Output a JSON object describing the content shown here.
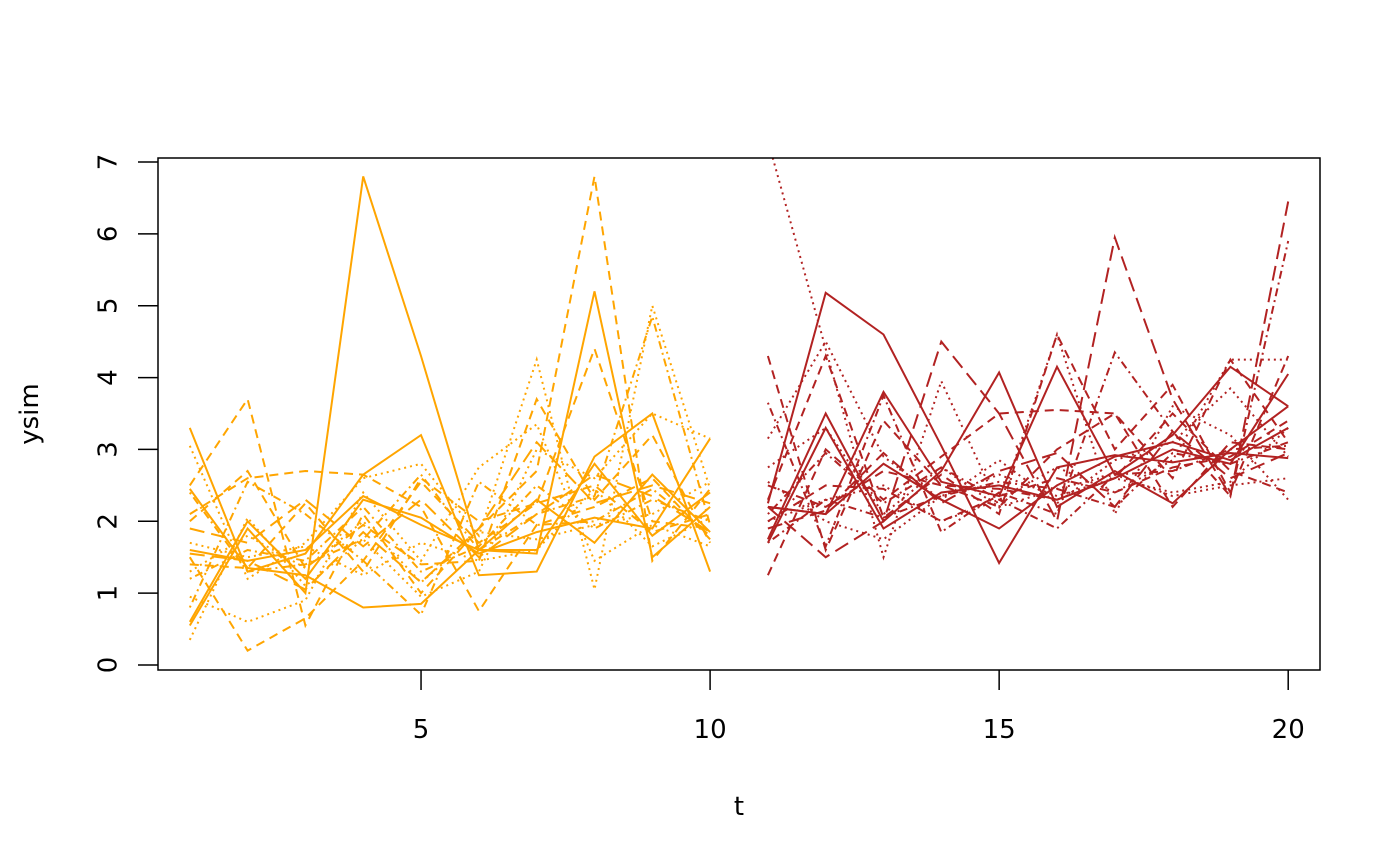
{
  "chart_data": {
    "type": "line",
    "xlabel": "t",
    "ylabel": "ysim",
    "xlim": [
      0.45,
      20.55
    ],
    "ylim": [
      0,
      7
    ],
    "x_ticks": [
      5,
      10,
      15,
      20
    ],
    "y_ticks": [
      0,
      1,
      2,
      3,
      4,
      5,
      6,
      7
    ],
    "grid": false,
    "legend": "none",
    "colors": {
      "group_a": "#ffa500",
      "group_b": "#b22222"
    },
    "group_a_x": [
      1,
      2,
      3,
      4,
      5,
      6,
      7,
      8,
      9,
      10
    ],
    "group_b_x": [
      11,
      12,
      13,
      14,
      15,
      16,
      17,
      18,
      19,
      20
    ],
    "series": [
      {
        "group": "a",
        "dash": "solid",
        "values": [
          0.55,
          1.9,
          1.0,
          6.8,
          4.3,
          1.6,
          1.55,
          5.2,
          1.5,
          2.2
        ]
      },
      {
        "group": "a",
        "dash": "solid",
        "values": [
          3.3,
          1.3,
          1.55,
          2.65,
          3.2,
          1.25,
          1.3,
          2.9,
          3.5,
          1.3
        ]
      },
      {
        "group": "a",
        "dash": "solid",
        "values": [
          2.45,
          1.35,
          1.25,
          0.8,
          0.85,
          1.6,
          2.3,
          1.7,
          2.65,
          1.85
        ]
      },
      {
        "group": "a",
        "dash": "solid",
        "values": [
          1.6,
          1.45,
          1.6,
          2.35,
          1.95,
          1.6,
          1.6,
          2.8,
          1.8,
          2.4
        ]
      },
      {
        "group": "a",
        "dash": "solid",
        "values": [
          0.6,
          2.0,
          1.2,
          2.3,
          2.05,
          1.55,
          1.85,
          2.05,
          1.9,
          3.15
        ]
      },
      {
        "group": "a",
        "dash": "dashed",
        "values": [
          2.5,
          3.7,
          0.55,
          2.1,
          1.0,
          1.9,
          2.7,
          6.8,
          1.45,
          2.45
        ]
      },
      {
        "group": "a",
        "dash": "dashed",
        "values": [
          1.5,
          0.2,
          0.65,
          1.45,
          2.55,
          1.7,
          2.25,
          4.4,
          2.0,
          1.9
        ]
      },
      {
        "group": "a",
        "dash": "dashed",
        "values": [
          2.1,
          2.6,
          2.7,
          2.65,
          2.2,
          0.75,
          1.95,
          2.2,
          2.6,
          1.75
        ]
      },
      {
        "group": "a",
        "dash": "dashed",
        "values": [
          1.4,
          1.35,
          2.25,
          1.3,
          2.6,
          2.0,
          2.25,
          2.5,
          1.85,
          2.1
        ]
      },
      {
        "group": "a",
        "dash": "dashed",
        "values": [
          2.0,
          2.7,
          1.35,
          1.95,
          1.4,
          1.45,
          3.7,
          2.3,
          3.2,
          1.7
        ]
      },
      {
        "group": "a",
        "dash": "dotted",
        "values": [
          3.05,
          1.2,
          1.7,
          2.6,
          2.8,
          1.8,
          4.25,
          1.05,
          5.0,
          2.45
        ]
      },
      {
        "group": "a",
        "dash": "dotted",
        "values": [
          0.35,
          2.05,
          1.1,
          1.75,
          0.95,
          1.3,
          3.0,
          2.6,
          3.5,
          3.15
        ]
      },
      {
        "group": "a",
        "dash": "dotted",
        "values": [
          0.95,
          0.6,
          0.9,
          2.4,
          1.45,
          2.75,
          3.35,
          1.45,
          1.95,
          1.65
        ]
      },
      {
        "group": "a",
        "dash": "dotted",
        "values": [
          1.7,
          1.5,
          1.65,
          1.25,
          1.7,
          1.45,
          1.6,
          2.45,
          1.65,
          2.05
        ]
      },
      {
        "group": "a",
        "dash": "dotted",
        "values": [
          1.3,
          1.8,
          1.35,
          2.0,
          1.15,
          1.85,
          1.75,
          1.95,
          2.1,
          2.55
        ]
      },
      {
        "group": "a",
        "dash": "dotdash",
        "values": [
          2.4,
          1.3,
          1.4,
          1.75,
          2.65,
          1.6,
          2.1,
          2.35,
          4.85,
          1.95
        ]
      },
      {
        "group": "a",
        "dash": "dotdash",
        "values": [
          0.8,
          2.55,
          2.1,
          1.45,
          0.7,
          2.55,
          1.95,
          2.0,
          2.45,
          1.8
        ]
      },
      {
        "group": "a",
        "dash": "dotdash",
        "values": [
          1.2,
          1.6,
          1.45,
          2.2,
          1.3,
          1.65,
          2.5,
          1.9,
          2.3,
          2.0
        ]
      },
      {
        "group": "a",
        "dash": "longdash",
        "values": [
          1.55,
          1.45,
          1.05,
          1.85,
          1.15,
          1.9,
          3.1,
          2.25,
          2.5,
          2.25
        ]
      },
      {
        "group": "a",
        "dash": "longdash",
        "values": [
          1.9,
          1.7,
          2.3,
          1.65,
          2.3,
          1.5,
          2.1,
          2.65,
          2.35,
          1.85
        ]
      },
      {
        "group": "b",
        "dash": "solid",
        "values": [
          2.25,
          5.18,
          4.6,
          3.05,
          1.42,
          2.75,
          2.92,
          2.82,
          2.95,
          2.88
        ]
      },
      {
        "group": "b",
        "dash": "solid",
        "values": [
          1.75,
          3.5,
          2.0,
          2.7,
          4.07,
          2.2,
          2.7,
          2.25,
          3.0,
          3.6
        ]
      },
      {
        "group": "b",
        "dash": "solid",
        "values": [
          2.2,
          2.1,
          3.8,
          2.55,
          2.35,
          4.15,
          2.65,
          3.2,
          4.15,
          3.6
        ]
      },
      {
        "group": "b",
        "dash": "solid",
        "values": [
          1.7,
          3.3,
          1.9,
          2.4,
          2.5,
          2.3,
          2.6,
          3.0,
          2.8,
          4.05
        ]
      },
      {
        "group": "b",
        "dash": "solid",
        "values": [
          2.2,
          2.1,
          2.8,
          2.3,
          1.9,
          2.5,
          2.9,
          3.1,
          2.85,
          3.3
        ]
      },
      {
        "group": "b",
        "dash": "dashed",
        "values": [
          2.3,
          4.3,
          2.05,
          2.65,
          2.1,
          4.6,
          3.0,
          3.9,
          2.4,
          4.3
        ]
      },
      {
        "group": "b",
        "dash": "dashed",
        "values": [
          4.3,
          1.6,
          3.4,
          2.5,
          2.2,
          3.0,
          3.5,
          2.2,
          3.1,
          3.0
        ]
      },
      {
        "group": "b",
        "dash": "dashed",
        "values": [
          1.25,
          3.0,
          2.3,
          2.9,
          3.5,
          3.55,
          3.5,
          2.6,
          4.25,
          3.1
        ]
      },
      {
        "group": "b",
        "dash": "dashed",
        "values": [
          2.5,
          2.2,
          2.7,
          2.5,
          2.45,
          2.3,
          2.6,
          3.5,
          2.7,
          2.4
        ]
      },
      {
        "group": "b",
        "dash": "dashed",
        "values": [
          2.0,
          2.5,
          2.45,
          2.0,
          2.35,
          2.6,
          2.4,
          2.75,
          2.9,
          3.4
        ]
      },
      {
        "group": "b",
        "dash": "dotted",
        "values": [
          7.3,
          4.4,
          1.5,
          3.95,
          2.2,
          4.6,
          2.1,
          3.6,
          3.2,
          2.3
        ]
      },
      {
        "group": "b",
        "dash": "dotted",
        "values": [
          3.15,
          4.5,
          2.9,
          2.3,
          2.85,
          2.25,
          2.85,
          3.1,
          3.85,
          2.9
        ]
      },
      {
        "group": "b",
        "dash": "dotted",
        "values": [
          2.55,
          2.0,
          1.75,
          2.35,
          2.65,
          2.35,
          2.6,
          2.4,
          2.55,
          3.3
        ]
      },
      {
        "group": "b",
        "dash": "dotted",
        "values": [
          2.0,
          2.3,
          2.5,
          2.0,
          2.3,
          2.75,
          2.4,
          2.85,
          4.25,
          4.25
        ]
      },
      {
        "group": "b",
        "dash": "dotted",
        "values": [
          2.75,
          3.3,
          2.1,
          2.75,
          2.2,
          2.45,
          2.65,
          2.35,
          2.5,
          2.6
        ]
      },
      {
        "group": "b",
        "dash": "dotdash",
        "values": [
          3.65,
          1.65,
          3.75,
          1.85,
          2.4,
          2.1,
          4.35,
          3.25,
          2.35,
          5.9
        ]
      },
      {
        "group": "b",
        "dash": "dotdash",
        "values": [
          2.1,
          2.95,
          2.25,
          2.75,
          2.3,
          1.9,
          2.65,
          2.7,
          3.0,
          3.05
        ]
      },
      {
        "group": "b",
        "dash": "dotdash",
        "values": [
          1.7,
          2.3,
          2.05,
          2.35,
          2.55,
          2.45,
          2.2,
          2.95,
          2.8,
          3.1
        ]
      },
      {
        "group": "b",
        "dash": "longdash",
        "values": [
          2.2,
          1.5,
          2.0,
          4.5,
          3.5,
          2.0,
          5.95,
          3.7,
          2.35,
          6.45
        ]
      },
      {
        "group": "b",
        "dash": "longdash",
        "values": [
          1.9,
          2.15,
          2.95,
          2.25,
          2.7,
          2.95,
          2.2,
          3.25,
          2.6,
          2.95
        ]
      }
    ]
  }
}
